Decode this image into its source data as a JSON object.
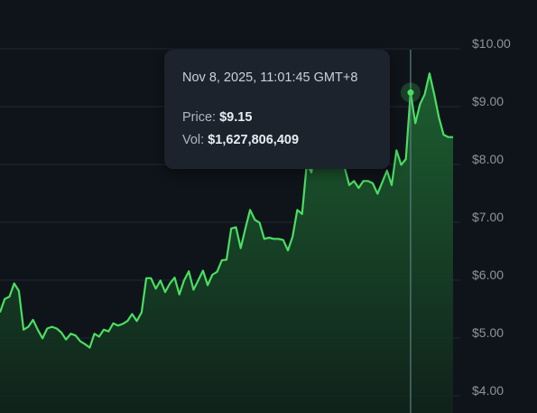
{
  "chart_data": {
    "type": "area",
    "y_axis": {
      "position": "right",
      "ylim": [
        3.65,
        10.25
      ],
      "ticks": [
        4,
        5,
        6,
        7,
        8,
        9,
        10
      ],
      "tick_labels": [
        "$4.00",
        "$5.00",
        "$6.00",
        "$7.00",
        "$8.00",
        "$9.00",
        "$10.00"
      ]
    },
    "grid": true,
    "line_color": "#4ade61",
    "fill_color": "#1f6b34",
    "series": [
      {
        "values": [
          5.35,
          5.58,
          5.62,
          5.85,
          5.72,
          5.05,
          5.1,
          5.22,
          5.05,
          4.9,
          5.07,
          5.1,
          5.07,
          5.0,
          4.88,
          4.98,
          4.95,
          4.85,
          4.8,
          4.74,
          4.98,
          4.93,
          5.05,
          5.02,
          5.16,
          5.12,
          5.15,
          5.2,
          5.32,
          5.2,
          5.35,
          5.94,
          5.94,
          5.76,
          5.9,
          5.7,
          5.85,
          5.95,
          5.66,
          5.9,
          6.06,
          5.74,
          5.9,
          6.07,
          5.82,
          6.0,
          6.05,
          6.25,
          6.26,
          6.8,
          6.82,
          6.46,
          6.8,
          7.12,
          6.95,
          6.9,
          6.62,
          6.64,
          6.62,
          6.62,
          6.6,
          6.42,
          6.66,
          7.12,
          7.05,
          7.92,
          7.77,
          8.45,
          8.5,
          8.38,
          8.5,
          7.95,
          8.0,
          7.86,
          7.55,
          7.62,
          7.5,
          7.62,
          7.62,
          7.58,
          7.4,
          7.6,
          7.8,
          7.55,
          8.15,
          7.9,
          8.0,
          9.15,
          8.62,
          8.95,
          9.12,
          9.48,
          9.12,
          8.72,
          8.42,
          8.38,
          8.38
        ]
      }
    ],
    "highlight_index": 87
  },
  "tooltip": {
    "date": "Nov 8, 2025, 11:01:45 GMT+8",
    "price_label": "Price:",
    "price_value": "$9.15",
    "vol_label": "Vol:",
    "vol_value": "$1,627,806,409"
  }
}
